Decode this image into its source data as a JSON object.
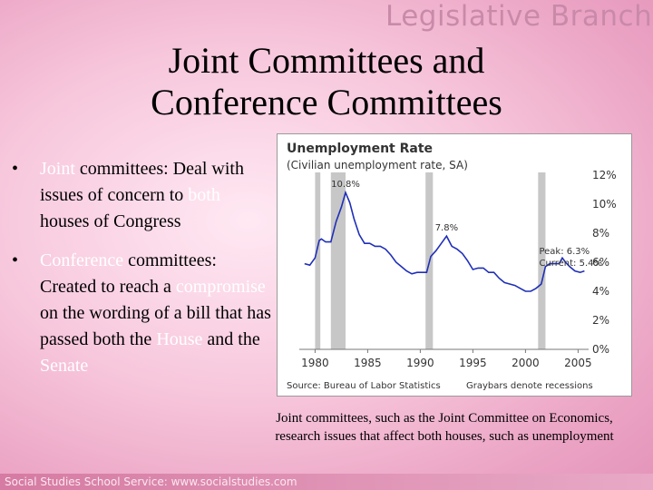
{
  "banner": "Legislative Branch",
  "title_line1": "Joint Committees and",
  "title_line2": "Conference Committees",
  "bullets": [
    {
      "marker": "•",
      "highlight": "Joint",
      "bold_text": " committees:",
      "text_a": " Deal with issues of concern to ",
      "highlight2": "both",
      "text_b": " houses of Congress"
    },
    {
      "marker": "•",
      "highlight": "Conference",
      "bold_text": " committees:",
      "text_a": " Created to reach a ",
      "highlight2": "compromise",
      "text_b": " on the wording of a bill that has passed both the ",
      "highlight3": "House",
      "text_c": " and the ",
      "highlight4": "Senate"
    }
  ],
  "caption": "Joint committees, such as the Joint Committee on Economics, research issues that affect both houses, such as unemployment",
  "footer": "Social Studies School Service: www.socialstudies.com",
  "colors": {
    "highlight": "#ffffff",
    "line": "#1f2fb8",
    "recession": "#c7c7c7"
  },
  "chart_data": {
    "type": "line",
    "title": "Unemployment Rate",
    "subtitle": "(Civilian unemployment rate, SA)",
    "source": "Source: Bureau of Labor Statistics",
    "note": "Graybars denote recessions",
    "xlim": [
      1978.5,
      2006
    ],
    "ylim": [
      0,
      12
    ],
    "x_ticks": [
      "1980",
      "1985",
      "1990",
      "1995",
      "2000",
      "2005"
    ],
    "y_ticks": [
      "0%",
      "2%",
      "4%",
      "6%",
      "8%",
      "10%",
      "12%"
    ],
    "recessions": [
      [
        1980.0,
        1980.5
      ],
      [
        1981.5,
        1982.9
      ],
      [
        1990.5,
        1991.2
      ],
      [
        2001.2,
        2001.9
      ]
    ],
    "annotations": [
      {
        "text": "10.8%",
        "x": 1982.9,
        "y": 10.8
      },
      {
        "text": "7.8%",
        "x": 1992.5,
        "y": 7.8
      },
      {
        "text": "Peak: 6.3%",
        "x": 2003.5,
        "y": 6.3
      },
      {
        "text": "Current: 5.4%",
        "x": 2005.5,
        "y": 5.4
      }
    ],
    "series": [
      {
        "x": [
          1979.0,
          1979.5,
          1980.0,
          1980.4,
          1980.6,
          1981.0,
          1981.5,
          1982.0,
          1982.5,
          1982.9,
          1983.3,
          1983.7,
          1984.2,
          1984.7,
          1985.2,
          1985.7,
          1986.2,
          1986.7,
          1987.2,
          1987.7,
          1988.2,
          1988.7,
          1989.2,
          1989.7,
          1990.2,
          1990.6,
          1991.0,
          1991.5,
          1992.0,
          1992.5,
          1993.0,
          1993.5,
          1994.0,
          1994.5,
          1995.0,
          1995.5,
          1996.0,
          1996.5,
          1997.0,
          1997.5,
          1998.0,
          1998.5,
          1999.0,
          1999.5,
          2000.0,
          2000.5,
          2001.0,
          2001.5,
          2001.9,
          2002.3,
          2002.8,
          2003.2,
          2003.5,
          2003.8,
          2004.2,
          2004.7,
          2005.2,
          2005.6
        ],
        "y": [
          5.9,
          5.8,
          6.3,
          7.5,
          7.6,
          7.4,
          7.4,
          8.8,
          9.8,
          10.8,
          10.1,
          9.0,
          7.9,
          7.3,
          7.3,
          7.1,
          7.1,
          6.9,
          6.5,
          6.0,
          5.7,
          5.4,
          5.2,
          5.3,
          5.3,
          5.3,
          6.4,
          6.8,
          7.3,
          7.8,
          7.1,
          6.9,
          6.6,
          6.1,
          5.5,
          5.6,
          5.6,
          5.3,
          5.3,
          4.9,
          4.6,
          4.5,
          4.4,
          4.2,
          4.0,
          4.0,
          4.2,
          4.5,
          5.7,
          5.9,
          5.9,
          5.9,
          6.3,
          6.0,
          5.7,
          5.4,
          5.3,
          5.4
        ]
      }
    ]
  }
}
